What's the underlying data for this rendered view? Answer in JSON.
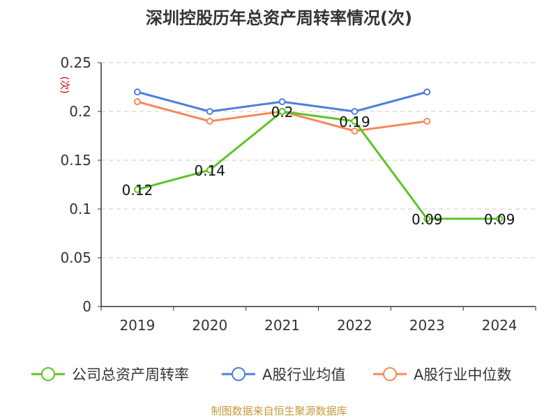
{
  "chart_data": {
    "type": "line",
    "title": "深圳控股历年总资产周转率情况(次)",
    "ylabel": "(次)",
    "categories": [
      "2019",
      "2020",
      "2021",
      "2022",
      "2023",
      "2024"
    ],
    "ylim": [
      0,
      0.25
    ],
    "yticks": [
      "0",
      "0.05",
      "0.1",
      "0.15",
      "0.2",
      "0.25"
    ],
    "grid": true,
    "legend_position": "bottom",
    "series": [
      {
        "name": "公司总资产周转率",
        "color": "#5bc427",
        "values": [
          0.12,
          0.14,
          0.2,
          0.19,
          0.09,
          0.09
        ],
        "labels": [
          "0.12",
          "0.14",
          "0.2",
          "0.19",
          "0.09",
          "0.09"
        ]
      },
      {
        "name": "A股行业均值",
        "color": "#4c7fdb",
        "values": [
          0.22,
          0.2,
          0.21,
          0.2,
          0.22,
          null
        ]
      },
      {
        "name": "A股行业中位数",
        "color": "#f5895a",
        "values": [
          0.21,
          0.19,
          0.2,
          0.18,
          0.19,
          null
        ]
      }
    ]
  },
  "source": "制图数据来自恒生聚源数据库"
}
